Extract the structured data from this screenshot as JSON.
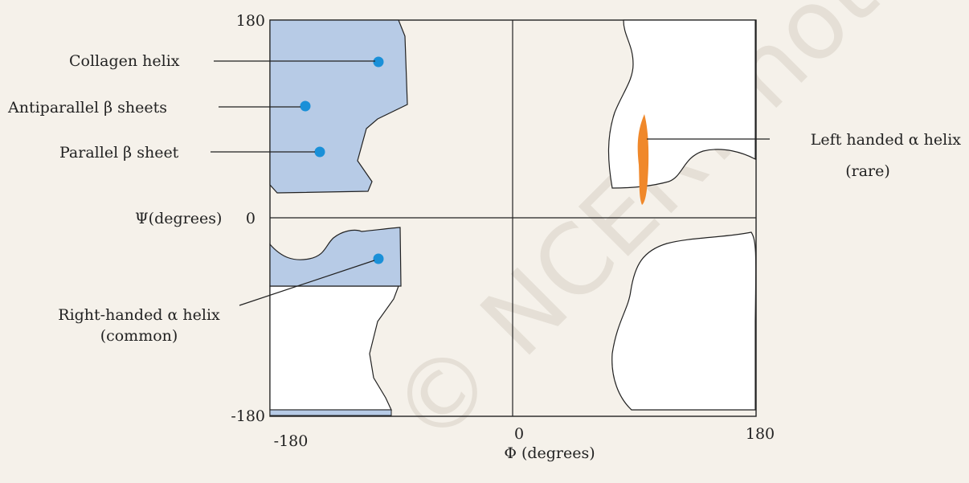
{
  "diagram": {
    "axes": {
      "y_label": "Ψ(degrees)",
      "x_label": "Φ (degrees)",
      "y_ticks": [
        "180",
        "0",
        "-180"
      ],
      "x_ticks": [
        "-180",
        "0",
        "180"
      ]
    },
    "labels": {
      "collagen": "Collagen helix",
      "antiparallel": "Antiparallel β sheets",
      "parallel": "Parallel β sheet",
      "left_handed_line1": "Left handed α helix",
      "left_handed_line2": "(rare)",
      "right_handed_line1": "Right-handed α helix",
      "right_handed_line2": "(common)"
    },
    "watermark": "© NCERT not to be republished",
    "colors": {
      "allowed_region_fill": "#b7cbe6",
      "outline": "#222222",
      "point": "#1a90d8",
      "left_helix": "#f0882a",
      "background": "#f5f1ea"
    }
  }
}
